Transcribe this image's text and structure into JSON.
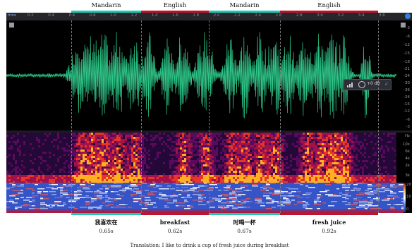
{
  "segments": [
    {
      "label": "Mandarin",
      "duration": "0.65s",
      "word": "我喜欢在",
      "color": "#23c8b4"
    },
    {
      "label": "English",
      "duration": "0.62s",
      "word": "breakfast",
      "color": "#c0122a"
    },
    {
      "label": "Mandarin",
      "duration": "0.67s",
      "word": "时喝一杯",
      "color": "#23c8b4"
    },
    {
      "label": "English",
      "duration": "0.92s",
      "word": "fresh juice",
      "color": "#c0122a"
    }
  ],
  "ruler": {
    "unit_label": "hms",
    "ticks": [
      "0.2",
      "0.4",
      "0.6",
      "0.8",
      "1.0",
      "1.2",
      "1.4",
      "1.6",
      "1.8",
      "2.0",
      "2.2",
      "2.4",
      "2.6",
      "2.8",
      "3.0",
      "3.2",
      "3.4",
      "3.6"
    ]
  },
  "db_scale": [
    "dB",
    "-3",
    "-6",
    "-12",
    "-∞",
    "-12",
    "-6",
    "-3",
    "dB"
  ],
  "db_scale_full": [
    "-3",
    "-6",
    "-12",
    "-15",
    "-18",
    "-21",
    "-24",
    "-30",
    "-36",
    "-24",
    "-15",
    "-12",
    "-6",
    "-3"
  ],
  "hz_scale": [
    "Hz",
    "10k",
    "6k",
    "4k",
    "2k",
    "1k",
    "3k"
  ],
  "right_scale": [
    "20",
    "10",
    "0"
  ],
  "hud": {
    "value": "+0 dB"
  },
  "translation": "Translation: I like to drink a cup of fresh juice during breakfast",
  "colors": {
    "wave": "#2ec98a",
    "mandarin": "#23c8b4",
    "english": "#c0122a"
  }
}
